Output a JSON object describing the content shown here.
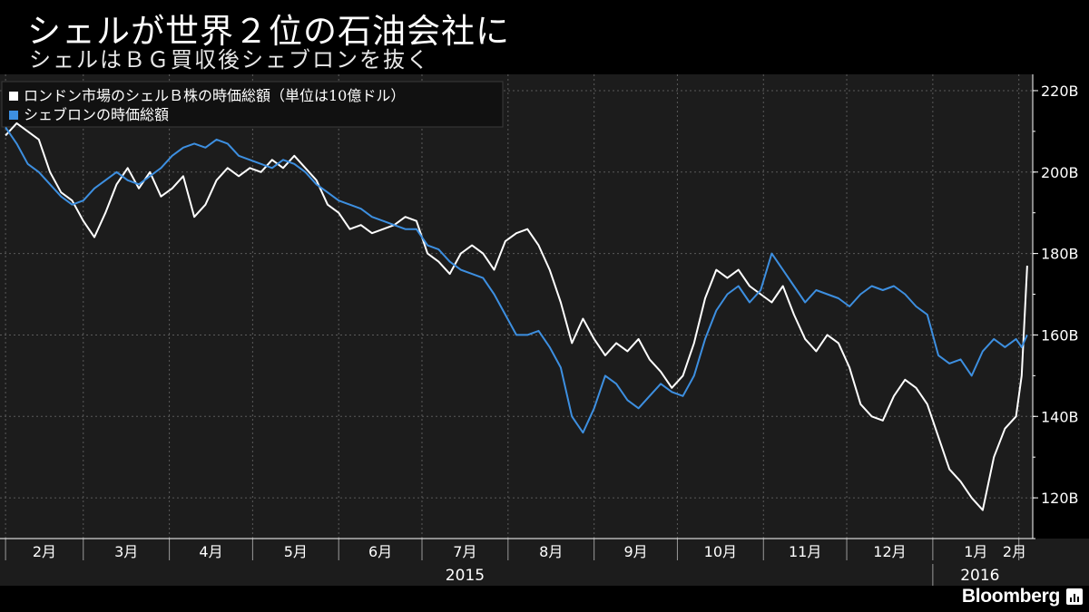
{
  "header": {
    "title": "シェルが世界２位の石油会社に",
    "subtitle": "シェルはＢＧ買収後シェブロンを抜く"
  },
  "brand": {
    "name": "Bloomberg",
    "icon": "bloomberg-chart-icon"
  },
  "chart_data": {
    "type": "line",
    "title": "シェルが世界２位の石油会社に",
    "subtitle": "シェルはＢＧ買収後シェブロンを抜く",
    "ylim": [
      110,
      224
    ],
    "y_ticks": [
      120,
      140,
      160,
      180,
      200,
      220
    ],
    "y_tick_labels": [
      "120B",
      "140B",
      "160B",
      "180B",
      "200B",
      "220B"
    ],
    "y_axis_side": "right",
    "grid": true,
    "legend_position": "top-left",
    "x_ticks": [
      {
        "date": "2015-02-01",
        "label": "2月"
      },
      {
        "date": "2015-03-01",
        "label": "3月"
      },
      {
        "date": "2015-04-01",
        "label": "4月"
      },
      {
        "date": "2015-05-01",
        "label": "5月"
      },
      {
        "date": "2015-06-01",
        "label": "6月"
      },
      {
        "date": "2015-07-01",
        "label": "7月"
      },
      {
        "date": "2015-08-01",
        "label": "8月"
      },
      {
        "date": "2015-09-01",
        "label": "9月"
      },
      {
        "date": "2015-10-01",
        "label": "10月"
      },
      {
        "date": "2015-11-01",
        "label": "11月"
      },
      {
        "date": "2015-12-01",
        "label": "12月"
      },
      {
        "date": "2016-01-01",
        "label": "1月"
      },
      {
        "date": "2016-02-01",
        "label": "2月"
      }
    ],
    "x_range": [
      "2015-02-01",
      "2016-02-04"
    ],
    "years": [
      {
        "label": "2015",
        "from": "2015-01-01",
        "to": "2015-12-31"
      },
      {
        "label": "2016",
        "from": "2016-01-01",
        "to": "2016-02-04"
      }
    ],
    "series": [
      {
        "name": "ロンドン市場のシェルＢ株の時価総額（単位は10億ドル）",
        "color": "#ffffff",
        "points": [
          [
            "2015-02-01",
            209
          ],
          [
            "2015-02-05",
            212
          ],
          [
            "2015-02-09",
            210
          ],
          [
            "2015-02-13",
            208
          ],
          [
            "2015-02-17",
            200
          ],
          [
            "2015-02-21",
            195
          ],
          [
            "2015-02-25",
            193
          ],
          [
            "2015-03-01",
            188
          ],
          [
            "2015-03-05",
            184
          ],
          [
            "2015-03-09",
            190
          ],
          [
            "2015-03-13",
            197
          ],
          [
            "2015-03-17",
            201
          ],
          [
            "2015-03-21",
            196
          ],
          [
            "2015-03-25",
            200
          ],
          [
            "2015-03-29",
            194
          ],
          [
            "2015-04-02",
            196
          ],
          [
            "2015-04-06",
            199
          ],
          [
            "2015-04-10",
            189
          ],
          [
            "2015-04-14",
            192
          ],
          [
            "2015-04-18",
            198
          ],
          [
            "2015-04-22",
            201
          ],
          [
            "2015-04-26",
            199
          ],
          [
            "2015-04-30",
            201
          ],
          [
            "2015-05-04",
            200
          ],
          [
            "2015-05-08",
            203
          ],
          [
            "2015-05-12",
            201
          ],
          [
            "2015-05-16",
            204
          ],
          [
            "2015-05-20",
            201
          ],
          [
            "2015-05-24",
            198
          ],
          [
            "2015-05-28",
            192
          ],
          [
            "2015-06-01",
            190
          ],
          [
            "2015-06-05",
            186
          ],
          [
            "2015-06-09",
            187
          ],
          [
            "2015-06-13",
            185
          ],
          [
            "2015-06-17",
            186
          ],
          [
            "2015-06-21",
            187
          ],
          [
            "2015-06-25",
            189
          ],
          [
            "2015-06-29",
            188
          ],
          [
            "2015-07-03",
            180
          ],
          [
            "2015-07-07",
            178
          ],
          [
            "2015-07-11",
            175
          ],
          [
            "2015-07-15",
            180
          ],
          [
            "2015-07-19",
            182
          ],
          [
            "2015-07-23",
            180
          ],
          [
            "2015-07-27",
            176
          ],
          [
            "2015-07-31",
            183
          ],
          [
            "2015-08-04",
            185
          ],
          [
            "2015-08-08",
            186
          ],
          [
            "2015-08-12",
            182
          ],
          [
            "2015-08-16",
            176
          ],
          [
            "2015-08-20",
            168
          ],
          [
            "2015-08-24",
            158
          ],
          [
            "2015-08-28",
            164
          ],
          [
            "2015-09-01",
            159
          ],
          [
            "2015-09-05",
            155
          ],
          [
            "2015-09-09",
            158
          ],
          [
            "2015-09-13",
            156
          ],
          [
            "2015-09-17",
            159
          ],
          [
            "2015-09-21",
            154
          ],
          [
            "2015-09-25",
            151
          ],
          [
            "2015-09-29",
            147
          ],
          [
            "2015-10-03",
            150
          ],
          [
            "2015-10-07",
            158
          ],
          [
            "2015-10-11",
            169
          ],
          [
            "2015-10-15",
            176
          ],
          [
            "2015-10-19",
            174
          ],
          [
            "2015-10-23",
            176
          ],
          [
            "2015-10-27",
            172
          ],
          [
            "2015-10-31",
            170
          ],
          [
            "2015-11-04",
            168
          ],
          [
            "2015-11-08",
            172
          ],
          [
            "2015-11-12",
            165
          ],
          [
            "2015-11-16",
            159
          ],
          [
            "2015-11-20",
            156
          ],
          [
            "2015-11-24",
            160
          ],
          [
            "2015-11-28",
            158
          ],
          [
            "2015-12-02",
            152
          ],
          [
            "2015-12-06",
            143
          ],
          [
            "2015-12-10",
            140
          ],
          [
            "2015-12-14",
            139
          ],
          [
            "2015-12-18",
            145
          ],
          [
            "2015-12-22",
            149
          ],
          [
            "2015-12-26",
            147
          ],
          [
            "2015-12-30",
            143
          ],
          [
            "2016-01-03",
            135
          ],
          [
            "2016-01-07",
            127
          ],
          [
            "2016-01-11",
            124
          ],
          [
            "2016-01-15",
            120
          ],
          [
            "2016-01-19",
            117
          ],
          [
            "2016-01-23",
            130
          ],
          [
            "2016-01-27",
            137
          ],
          [
            "2016-01-31",
            140
          ],
          [
            "2016-02-02",
            150
          ],
          [
            "2016-02-04",
            177
          ]
        ]
      },
      {
        "name": "シェブロンの時価総額",
        "color": "#3d8fe0",
        "points": [
          [
            "2015-02-01",
            211
          ],
          [
            "2015-02-05",
            207
          ],
          [
            "2015-02-09",
            202
          ],
          [
            "2015-02-13",
            200
          ],
          [
            "2015-02-17",
            197
          ],
          [
            "2015-02-21",
            194
          ],
          [
            "2015-02-25",
            192
          ],
          [
            "2015-03-01",
            193
          ],
          [
            "2015-03-05",
            196
          ],
          [
            "2015-03-09",
            198
          ],
          [
            "2015-03-13",
            200
          ],
          [
            "2015-03-17",
            198
          ],
          [
            "2015-03-21",
            197
          ],
          [
            "2015-03-25",
            199
          ],
          [
            "2015-03-29",
            201
          ],
          [
            "2015-04-02",
            204
          ],
          [
            "2015-04-06",
            206
          ],
          [
            "2015-04-10",
            207
          ],
          [
            "2015-04-14",
            206
          ],
          [
            "2015-04-18",
            208
          ],
          [
            "2015-04-22",
            207
          ],
          [
            "2015-04-26",
            204
          ],
          [
            "2015-04-30",
            203
          ],
          [
            "2015-05-04",
            202
          ],
          [
            "2015-05-08",
            201
          ],
          [
            "2015-05-12",
            203
          ],
          [
            "2015-05-16",
            202
          ],
          [
            "2015-05-20",
            200
          ],
          [
            "2015-05-24",
            197
          ],
          [
            "2015-05-28",
            195
          ],
          [
            "2015-06-01",
            193
          ],
          [
            "2015-06-05",
            192
          ],
          [
            "2015-06-09",
            191
          ],
          [
            "2015-06-13",
            189
          ],
          [
            "2015-06-17",
            188
          ],
          [
            "2015-06-21",
            187
          ],
          [
            "2015-06-25",
            186
          ],
          [
            "2015-06-29",
            186
          ],
          [
            "2015-07-03",
            182
          ],
          [
            "2015-07-07",
            181
          ],
          [
            "2015-07-11",
            178
          ],
          [
            "2015-07-15",
            176
          ],
          [
            "2015-07-19",
            175
          ],
          [
            "2015-07-23",
            174
          ],
          [
            "2015-07-27",
            170
          ],
          [
            "2015-07-31",
            165
          ],
          [
            "2015-08-04",
            160
          ],
          [
            "2015-08-08",
            160
          ],
          [
            "2015-08-12",
            161
          ],
          [
            "2015-08-16",
            157
          ],
          [
            "2015-08-20",
            152
          ],
          [
            "2015-08-24",
            140
          ],
          [
            "2015-08-28",
            136
          ],
          [
            "2015-09-01",
            142
          ],
          [
            "2015-09-05",
            150
          ],
          [
            "2015-09-09",
            148
          ],
          [
            "2015-09-13",
            144
          ],
          [
            "2015-09-17",
            142
          ],
          [
            "2015-09-21",
            145
          ],
          [
            "2015-09-25",
            148
          ],
          [
            "2015-09-29",
            146
          ],
          [
            "2015-10-03",
            145
          ],
          [
            "2015-10-07",
            150
          ],
          [
            "2015-10-11",
            159
          ],
          [
            "2015-10-15",
            166
          ],
          [
            "2015-10-19",
            170
          ],
          [
            "2015-10-23",
            172
          ],
          [
            "2015-10-27",
            168
          ],
          [
            "2015-10-31",
            171
          ],
          [
            "2015-11-04",
            180
          ],
          [
            "2015-11-08",
            176
          ],
          [
            "2015-11-12",
            172
          ],
          [
            "2015-11-16",
            168
          ],
          [
            "2015-11-20",
            171
          ],
          [
            "2015-11-24",
            170
          ],
          [
            "2015-11-28",
            169
          ],
          [
            "2015-12-02",
            167
          ],
          [
            "2015-12-06",
            170
          ],
          [
            "2015-12-10",
            172
          ],
          [
            "2015-12-14",
            171
          ],
          [
            "2015-12-18",
            172
          ],
          [
            "2015-12-22",
            170
          ],
          [
            "2015-12-26",
            167
          ],
          [
            "2015-12-30",
            165
          ],
          [
            "2016-01-03",
            155
          ],
          [
            "2016-01-07",
            153
          ],
          [
            "2016-01-11",
            154
          ],
          [
            "2016-01-15",
            150
          ],
          [
            "2016-01-19",
            156
          ],
          [
            "2016-01-23",
            159
          ],
          [
            "2016-01-27",
            157
          ],
          [
            "2016-01-31",
            159
          ],
          [
            "2016-02-02",
            157
          ],
          [
            "2016-02-04",
            160
          ]
        ]
      }
    ]
  }
}
